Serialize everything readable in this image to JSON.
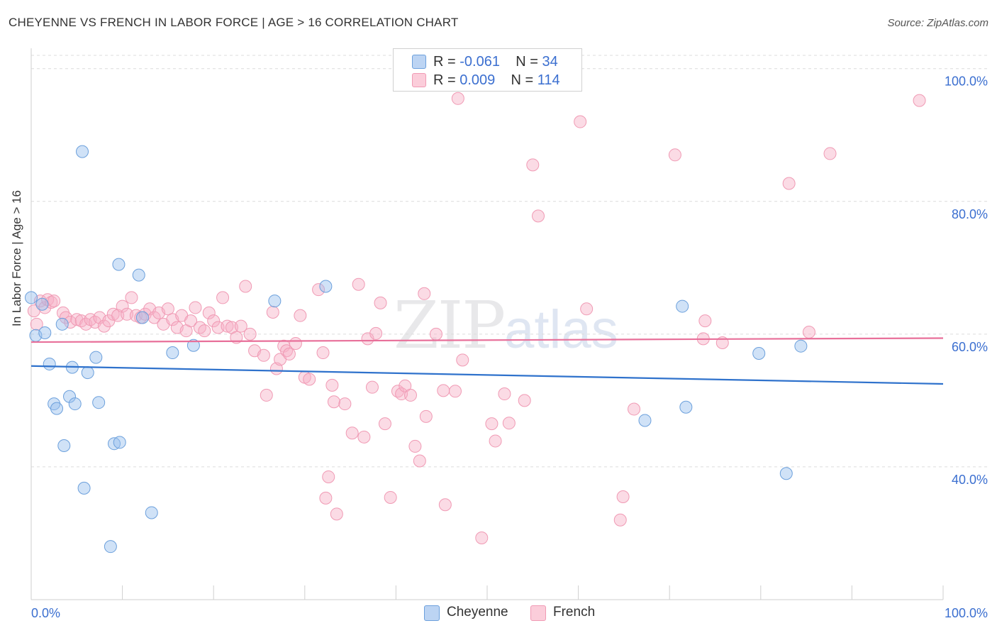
{
  "title": "CHEYENNE VS FRENCH IN LABOR FORCE | AGE > 16 CORRELATION CHART",
  "source": "Source: ZipAtlas.com",
  "watermark": {
    "zip": "ZIP",
    "atlas": "atlas"
  },
  "legend": {
    "rows": [
      {
        "r_label": "R = ",
        "r_value": "-0.061",
        "n_label": "N = ",
        "n_value": "34"
      },
      {
        "r_label": "R = ",
        "r_value": "0.009",
        "n_label": "N = ",
        "n_value": "114"
      }
    ]
  },
  "chart_data": {
    "type": "scatter",
    "title": "CHEYENNE VS FRENCH IN LABOR FORCE | AGE > 16 CORRELATION CHART",
    "xlabel": "",
    "ylabel": "In Labor Force | Age > 16",
    "xlim": [
      0,
      100
    ],
    "ylim": [
      20,
      102
    ],
    "x_tick_labels": [
      "0.0%",
      "100.0%"
    ],
    "y_tick_labels": [
      "40.0%",
      "60.0%",
      "80.0%",
      "100.0%"
    ],
    "y_ticks": [
      40,
      60,
      80,
      100
    ],
    "grid": "horizontal dashed",
    "legend_position": "top-center and bottom",
    "colors": {
      "cheyenne": "#6ca0dc",
      "cheyenne_line": "#2f72cc",
      "french": "#f09ab4",
      "french_line": "#e8709a",
      "tick_text": "#3b6fd0"
    },
    "series": [
      {
        "name": "Cheyenne",
        "trend": {
          "x": [
            0,
            100
          ],
          "y": [
            55.2,
            52.5
          ]
        },
        "points": [
          [
            0,
            65.5
          ],
          [
            0.5,
            59.8
          ],
          [
            1.2,
            64.5
          ],
          [
            1.5,
            60.2
          ],
          [
            2,
            55.5
          ],
          [
            2.5,
            49.5
          ],
          [
            2.8,
            48.8
          ],
          [
            3.4,
            61.5
          ],
          [
            3.6,
            43.2
          ],
          [
            4.2,
            50.6
          ],
          [
            4.5,
            55
          ],
          [
            4.8,
            49.5
          ],
          [
            5.6,
            87.5
          ],
          [
            5.8,
            36.8
          ],
          [
            6.2,
            54.2
          ],
          [
            7.1,
            56.5
          ],
          [
            7.4,
            49.7
          ],
          [
            8.7,
            28
          ],
          [
            9.1,
            43.5
          ],
          [
            9.7,
            43.7
          ],
          [
            9.6,
            70.5
          ],
          [
            11.8,
            68.9
          ],
          [
            12.2,
            62.5
          ],
          [
            13.2,
            33.1
          ],
          [
            15.5,
            57.2
          ],
          [
            17.8,
            58.3
          ],
          [
            26.7,
            65
          ],
          [
            32.3,
            67.2
          ],
          [
            67.3,
            47
          ],
          [
            71.4,
            64.2
          ],
          [
            71.8,
            49
          ],
          [
            79.8,
            57.1
          ],
          [
            82.8,
            39
          ],
          [
            84.4,
            58.2
          ]
        ]
      },
      {
        "name": "French",
        "trend": {
          "x": [
            0,
            100
          ],
          "y": [
            58.8,
            59.4
          ]
        },
        "points": [
          [
            0.3,
            63.5
          ],
          [
            0.6,
            61.5
          ],
          [
            1,
            65
          ],
          [
            1.5,
            64
          ],
          [
            1.8,
            65.2
          ],
          [
            2.2,
            64.8
          ],
          [
            2.5,
            65
          ],
          [
            3.5,
            63.2
          ],
          [
            3.8,
            62.5
          ],
          [
            4.3,
            61.8
          ],
          [
            5,
            62.2
          ],
          [
            5.5,
            62
          ],
          [
            6,
            61.5
          ],
          [
            6.5,
            62.2
          ],
          [
            7,
            61.8
          ],
          [
            7.5,
            62.5
          ],
          [
            8,
            61.2
          ],
          [
            8.5,
            62
          ],
          [
            9,
            63
          ],
          [
            9.5,
            62.8
          ],
          [
            10,
            64.2
          ],
          [
            10.5,
            63
          ],
          [
            11,
            65.5
          ],
          [
            11.5,
            62.8
          ],
          [
            12,
            62.5
          ],
          [
            12.5,
            63
          ],
          [
            13,
            63.8
          ],
          [
            13.5,
            62.5
          ],
          [
            14,
            63.2
          ],
          [
            14.5,
            61.5
          ],
          [
            15,
            63.8
          ],
          [
            15.5,
            62.2
          ],
          [
            16,
            61
          ],
          [
            16.5,
            62.8
          ],
          [
            17,
            60.5
          ],
          [
            17.5,
            62
          ],
          [
            18,
            64
          ],
          [
            18.5,
            61
          ],
          [
            19,
            60.5
          ],
          [
            19.5,
            63.2
          ],
          [
            20,
            62
          ],
          [
            20.5,
            61
          ],
          [
            21,
            65.5
          ],
          [
            21.5,
            61.2
          ],
          [
            22,
            61
          ],
          [
            22.5,
            59.5
          ],
          [
            23,
            61.2
          ],
          [
            23.5,
            67.2
          ],
          [
            24,
            60
          ],
          [
            24.5,
            57.5
          ],
          [
            25.5,
            56.8
          ],
          [
            25.8,
            50.8
          ],
          [
            26.5,
            63.3
          ],
          [
            26.9,
            54.8
          ],
          [
            27.3,
            56.2
          ],
          [
            27.7,
            58.2
          ],
          [
            28,
            57.5
          ],
          [
            28.3,
            57
          ],
          [
            29,
            58.6
          ],
          [
            29.5,
            62.8
          ],
          [
            30,
            53.5
          ],
          [
            30.5,
            53.2
          ],
          [
            31.5,
            66.7
          ],
          [
            32,
            57.2
          ],
          [
            32.6,
            38.5
          ],
          [
            32.3,
            35.3
          ],
          [
            33,
            52.3
          ],
          [
            33.2,
            49.8
          ],
          [
            33.5,
            32.9
          ],
          [
            34.4,
            49.5
          ],
          [
            35.2,
            45.1
          ],
          [
            35.9,
            67.5
          ],
          [
            36.5,
            44.5
          ],
          [
            36.9,
            59.3
          ],
          [
            37.4,
            52
          ],
          [
            37.8,
            60.1
          ],
          [
            38.3,
            64.7
          ],
          [
            38.8,
            46.5
          ],
          [
            39.4,
            35.4
          ],
          [
            40.2,
            51.4
          ],
          [
            40.6,
            51
          ],
          [
            41,
            52.2
          ],
          [
            41.6,
            50.8
          ],
          [
            42.1,
            43.1
          ],
          [
            42.6,
            40.9
          ],
          [
            43.1,
            66.1
          ],
          [
            43.3,
            47.6
          ],
          [
            44.4,
            60
          ],
          [
            45.2,
            51.5
          ],
          [
            45.4,
            34.3
          ],
          [
            46.5,
            51.4
          ],
          [
            46.8,
            95.5
          ],
          [
            47.3,
            56.1
          ],
          [
            49.4,
            29.3
          ],
          [
            50.5,
            46.5
          ],
          [
            50.9,
            43.9
          ],
          [
            51.9,
            51
          ],
          [
            52.4,
            46.6
          ],
          [
            54.1,
            50
          ],
          [
            55,
            85.5
          ],
          [
            55.6,
            77.8
          ],
          [
            60.2,
            92
          ],
          [
            60.9,
            63.8
          ],
          [
            64.6,
            32
          ],
          [
            64.9,
            35.5
          ],
          [
            66.1,
            48.7
          ],
          [
            70.6,
            87
          ],
          [
            73.7,
            59.3
          ],
          [
            73.9,
            62
          ],
          [
            75.8,
            58.7
          ],
          [
            83.1,
            82.7
          ],
          [
            85.3,
            60.3
          ],
          [
            87.6,
            87.2
          ],
          [
            97.4,
            95.2
          ]
        ]
      }
    ]
  },
  "bottom_legend": [
    {
      "label": "Cheyenne"
    },
    {
      "label": "French"
    }
  ]
}
